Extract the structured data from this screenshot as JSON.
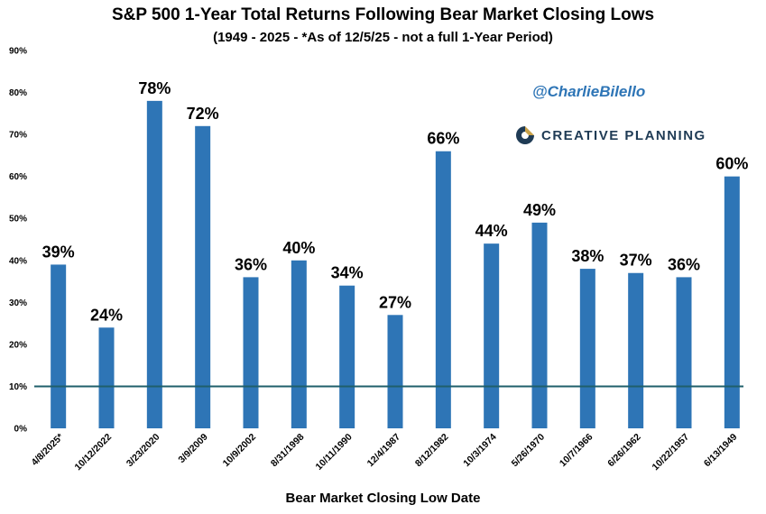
{
  "chart_data": {
    "type": "bar",
    "title": "S&P 500 1-Year Total Returns Following Bear Market Closing Lows",
    "subtitle": "(1949 - 2025 - *As of 12/5/25 - not a full 1-Year Period)",
    "xlabel": "Bear Market Closing Low Date",
    "ylabel": "",
    "ylim": [
      0,
      90
    ],
    "yticks": [
      "0%",
      "10%",
      "20%",
      "30%",
      "40%",
      "50%",
      "60%",
      "70%",
      "80%",
      "90%"
    ],
    "categories": [
      "4/8/2025*",
      "10/12/2022",
      "3/23/2020",
      "3/9/2009",
      "10/9/2002",
      "8/31/1998",
      "10/11/1990",
      "12/4/1987",
      "8/12/1982",
      "10/3/1974",
      "5/26/1970",
      "10/7/1966",
      "6/26/1962",
      "10/22/1957",
      "6/13/1949"
    ],
    "values": [
      39,
      24,
      78,
      72,
      36,
      40,
      34,
      27,
      66,
      44,
      49,
      38,
      37,
      36,
      60
    ],
    "data_labels": [
      "39%",
      "24%",
      "78%",
      "72%",
      "36%",
      "40%",
      "34%",
      "27%",
      "66%",
      "44%",
      "49%",
      "38%",
      "37%",
      "36%",
      "60%"
    ],
    "reference_line": 10,
    "bar_color": "#2E75B6",
    "reference_color": "#1F5F6B",
    "grid": false,
    "legend": "none"
  },
  "branding": {
    "handle": "@CharlieBilello",
    "logo_text": "CREATIVE PLANNING",
    "logo_icon": "creative-planning-logo-icon",
    "handle_color": "#2E75B6"
  }
}
